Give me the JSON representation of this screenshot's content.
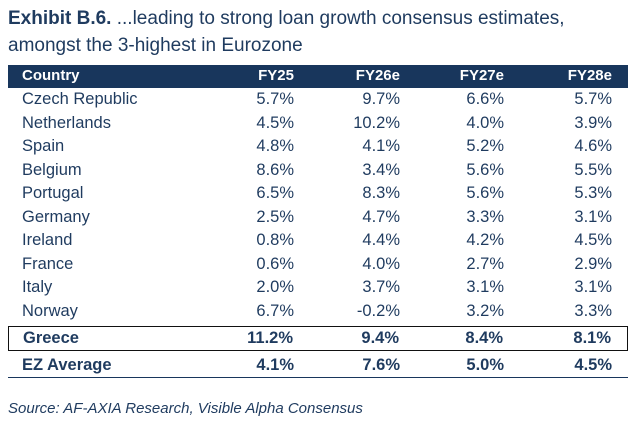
{
  "title": {
    "exhibit": "Exhibit B.6.",
    "text": " ...leading to strong loan growth consensus estimates, amongst the 3-highest in Eurozone"
  },
  "table": {
    "columns": [
      "Country",
      "FY25",
      "FY26e",
      "FY27e",
      "FY28e"
    ],
    "rows": [
      [
        "Czech Republic",
        "5.7%",
        "9.7%",
        "6.6%",
        "5.7%"
      ],
      [
        "Netherlands",
        "4.5%",
        "10.2%",
        "4.0%",
        "3.9%"
      ],
      [
        "Spain",
        "4.8%",
        "4.1%",
        "5.2%",
        "4.6%"
      ],
      [
        "Belgium",
        "8.6%",
        "3.4%",
        "5.6%",
        "5.5%"
      ],
      [
        "Portugal",
        "6.5%",
        "8.3%",
        "5.6%",
        "5.3%"
      ],
      [
        "Germany",
        "2.5%",
        "4.7%",
        "3.3%",
        "3.1%"
      ],
      [
        "Ireland",
        "0.8%",
        "4.4%",
        "4.2%",
        "4.5%"
      ],
      [
        "France",
        "0.6%",
        "4.0%",
        "2.7%",
        "2.9%"
      ],
      [
        "Italy",
        "2.0%",
        "3.7%",
        "3.1%",
        "3.1%"
      ],
      [
        "Norway",
        "6.7%",
        "-0.2%",
        "3.2%",
        "3.3%"
      ]
    ],
    "highlight": [
      "Greece",
      "11.2%",
      "9.4%",
      "8.4%",
      "8.1%"
    ],
    "average": [
      "EZ Average",
      "4.1%",
      "7.6%",
      "5.0%",
      "4.5%"
    ]
  },
  "source": "Source: AF-AXIA Research, Visible Alpha Consensus"
}
